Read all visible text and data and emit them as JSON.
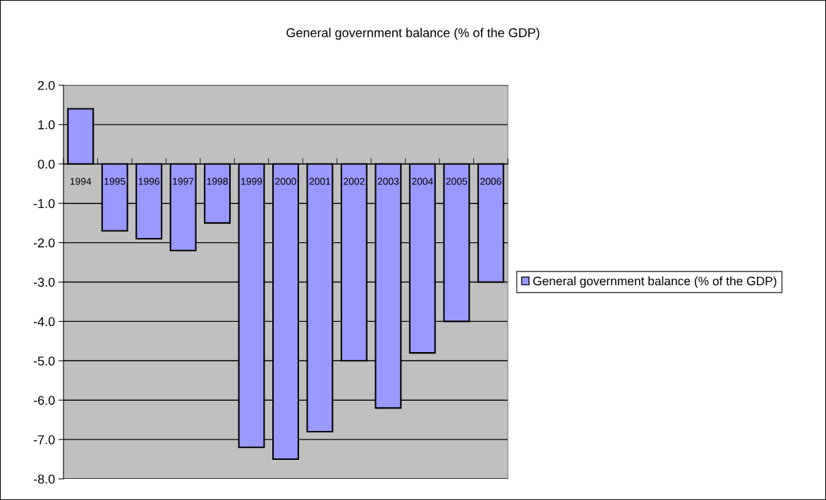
{
  "chart_data": {
    "type": "bar",
    "title": "General government balance (% of the GDP)",
    "categories": [
      "1994",
      "1995",
      "1996",
      "1997",
      "1998",
      "1999",
      "2000",
      "2001",
      "2002",
      "2003",
      "2004",
      "2005",
      "2006"
    ],
    "series": [
      {
        "name": "General government balance (% of the GDP)",
        "color": "#9999ff",
        "values": [
          1.4,
          -1.7,
          -1.9,
          -2.2,
          -1.5,
          -7.2,
          -7.5,
          -6.8,
          -5.0,
          -6.2,
          -4.8,
          -4.0,
          -3.0
        ]
      }
    ],
    "ylim": [
      -8,
      2
    ],
    "yticks": [
      {
        "value": -8,
        "label": "-8.0"
      },
      {
        "value": -7,
        "label": "-7.0"
      },
      {
        "value": -6,
        "label": "-6.0"
      },
      {
        "value": -5,
        "label": "-5.0"
      },
      {
        "value": -4,
        "label": "-4.0"
      },
      {
        "value": -3,
        "label": "-3.0"
      },
      {
        "value": -2,
        "label": "-2.0"
      },
      {
        "value": -1,
        "label": "-1.0"
      },
      {
        "value": 0,
        "label": "0.0"
      },
      {
        "value": 1,
        "label": "1.0"
      },
      {
        "value": 2,
        "label": "2.0"
      }
    ],
    "grid": "y",
    "legend": "right"
  }
}
